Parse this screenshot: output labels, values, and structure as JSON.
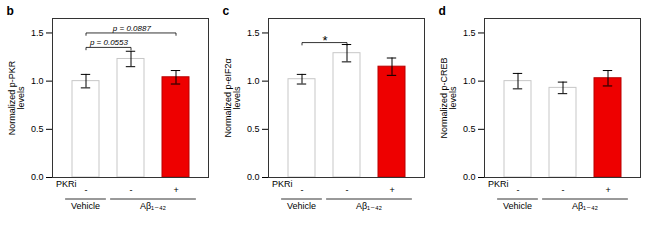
{
  "chart_data": [
    {
      "type": "bar",
      "title": "b",
      "ylabel": "Normalized p-PKR\nlevels",
      "xlabel": "PKRi",
      "categories": [
        "-",
        "-",
        "+"
      ],
      "groups": [
        "Vehicle",
        "Aβ₁₋₄₂",
        "Aβ₁₋₄₂"
      ],
      "values": [
        1.0,
        1.23,
        1.04
      ],
      "errors": [
        0.07,
        0.08,
        0.07
      ],
      "colors": [
        "white",
        "white",
        "#ee0000"
      ],
      "ylim": [
        0,
        1.65
      ],
      "yticks": [
        {
          "value": 0,
          "label": "0.0"
        },
        0.5,
        {
          "value": 1,
          "label": "1.0"
        },
        1.5
      ],
      "annotations": [
        {
          "text": "p = 0.0553",
          "x1": 0,
          "x2": 1,
          "y": 1.35
        },
        {
          "text": "p = 0.0887",
          "x1": 0,
          "x2": 2,
          "y": 1.5
        }
      ]
    },
    {
      "type": "bar",
      "title": "c",
      "ylabel": "Normalized p-eIF2α\nlevels",
      "xlabel": "PKRi",
      "categories": [
        "-",
        "-",
        "+"
      ],
      "groups": [
        "Vehicle",
        "Aβ₁₋₄₂",
        "Aβ₁₋₄₂"
      ],
      "values": [
        1.02,
        1.29,
        1.15
      ],
      "errors": [
        0.05,
        0.09,
        0.09
      ],
      "colors": [
        "white",
        "white",
        "#ee0000"
      ],
      "ylim": [
        0,
        1.65
      ],
      "yticks": [
        {
          "value": 0,
          "label": "0.0"
        },
        0.5,
        {
          "value": 1,
          "label": "1.0"
        },
        1.5
      ],
      "annotations": [
        {
          "text": "*",
          "x1": 0,
          "x2": 1,
          "y": 1.4
        }
      ]
    },
    {
      "type": "bar",
      "title": "d",
      "ylabel": "Normalized p-CREB\nlevels",
      "xlabel": "PKRi",
      "categories": [
        "-",
        "-",
        "+"
      ],
      "groups": [
        "Vehicle",
        "Aβ₁₋₄₂",
        "Aβ₁₋₄₂"
      ],
      "values": [
        1.0,
        0.93,
        1.03
      ],
      "errors": [
        0.08,
        0.06,
        0.08
      ],
      "colors": [
        "white",
        "white",
        "#ee0000"
      ],
      "ylim": [
        0,
        1.65
      ],
      "yticks": [
        {
          "value": 0,
          "label": "0.0"
        },
        0.5,
        {
          "value": 1,
          "label": "1.0"
        },
        1.5
      ],
      "annotations": []
    }
  ]
}
